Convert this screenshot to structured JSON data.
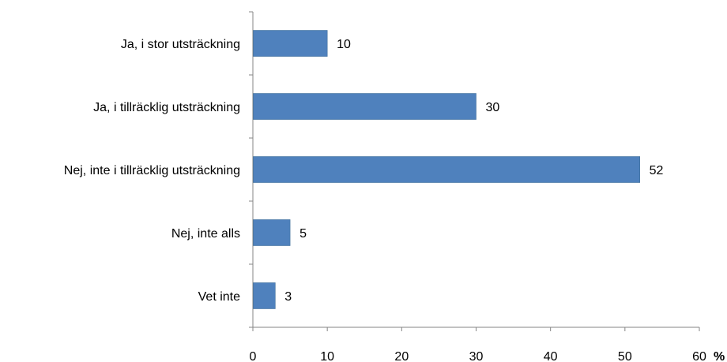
{
  "chart_data": {
    "type": "bar",
    "orientation": "horizontal",
    "categories": [
      "Ja, i stor utsträckning",
      "Ja, i tillräcklig utsträckning",
      "Nej, inte i tillräcklig utsträckning",
      "Nej, inte alls",
      "Vet inte"
    ],
    "values": [
      10,
      30,
      52,
      5,
      3
    ],
    "data_labels": [
      "10",
      "30",
      "52",
      "5",
      "3"
    ],
    "xlim": [
      0,
      60
    ],
    "x_ticks": [
      "0",
      "10",
      "20",
      "30",
      "40",
      "50",
      "60"
    ],
    "x_unit": "%",
    "bar_color": "#4F81BD",
    "grid": false,
    "legend": "none"
  }
}
